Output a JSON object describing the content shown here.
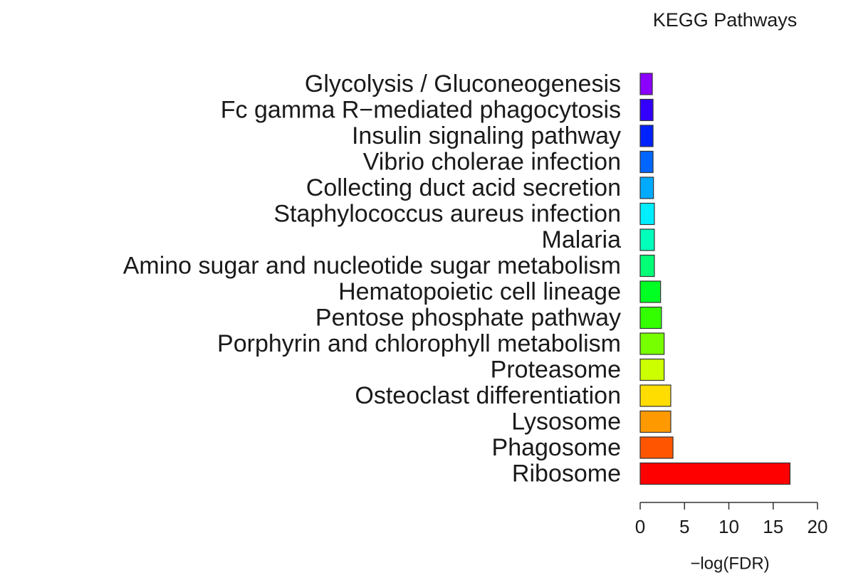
{
  "chart_data": {
    "type": "barh",
    "title": "KEGG Pathways",
    "xlabel": "−log(FDR)",
    "categories": [
      "Glycolysis / Gluconeogenesis",
      "Fc gamma R−mediated phagocytosis",
      "Insulin signaling pathway",
      "Vibrio cholerae infection",
      "Collecting duct acid secretion",
      "Staphylococcus aureus infection",
      "Malaria",
      "Amino sugar and nucleotide sugar metabolism",
      "Hematopoietic cell lineage",
      "Pentose phosphate pathway",
      "Porphyrin and chlorophyll metabolism",
      "Proteasome",
      "Osteoclast differentiation",
      "Lysosome",
      "Phagosome",
      "Ribosome"
    ],
    "values": [
      1.37,
      1.45,
      1.45,
      1.45,
      1.5,
      1.6,
      1.6,
      1.6,
      2.3,
      2.4,
      2.7,
      2.7,
      3.45,
      3.45,
      3.7,
      16.9
    ],
    "colors": [
      "#8b00ff",
      "#3300ff",
      "#0022ff",
      "#0066ff",
      "#00aaff",
      "#00eeff",
      "#00ffbb",
      "#00ff77",
      "#00ff22",
      "#33ff00",
      "#77ff00",
      "#ccff00",
      "#ffdd00",
      "#ff9900",
      "#ff5500",
      "#ff0000"
    ],
    "xlim": [
      0,
      20
    ],
    "xticks": [
      0,
      5,
      10,
      15,
      20
    ]
  }
}
